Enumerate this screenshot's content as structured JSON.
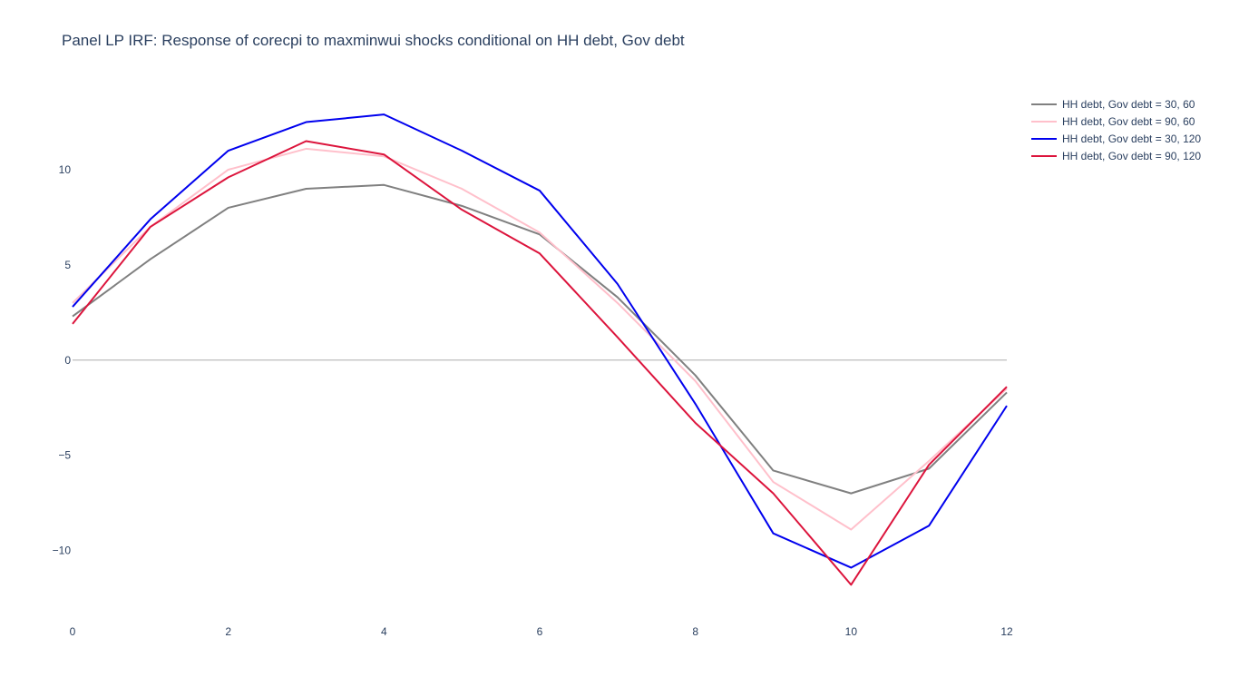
{
  "chart_data": {
    "type": "line",
    "title": "Panel LP IRF: Response of corecpi to maxminwui shocks conditional on HH debt, Gov debt",
    "xlabel": "",
    "ylabel": "",
    "x": [
      0,
      1,
      2,
      3,
      4,
      5,
      6,
      7,
      8,
      9,
      10,
      11,
      12
    ],
    "xlim": [
      0,
      12
    ],
    "ylim": [
      -13.5,
      15.1
    ],
    "x_ticks": [
      0,
      2,
      4,
      6,
      8,
      10,
      12
    ],
    "x_tick_labels": [
      "0",
      "2",
      "4",
      "6",
      "8",
      "10",
      "12"
    ],
    "y_ticks": [
      -10,
      -5,
      0,
      5,
      10
    ],
    "y_tick_labels": [
      "−10",
      "−5",
      "0",
      "5",
      "10"
    ],
    "zero_line": true,
    "grid": false,
    "legend_position": "top-right",
    "series": [
      {
        "name": "HH debt, Gov debt = 30, 60",
        "color": "#808080",
        "values": [
          2.3,
          5.3,
          8.0,
          9.0,
          9.2,
          8.1,
          6.6,
          3.3,
          -0.8,
          -5.8,
          -7.0,
          -5.7,
          -1.7
        ]
      },
      {
        "name": "HH debt, Gov debt = 90, 60",
        "color": "#ffc0cb",
        "values": [
          3.0,
          7.0,
          10.0,
          11.1,
          10.7,
          9.0,
          6.7,
          3.0,
          -1.1,
          -6.4,
          -8.9,
          -5.3,
          -1.5
        ]
      },
      {
        "name": "HH debt, Gov debt = 30, 120",
        "color": "#0000ee",
        "values": [
          2.8,
          7.4,
          11.0,
          12.5,
          12.9,
          11.0,
          8.9,
          4.0,
          -2.3,
          -9.1,
          -10.9,
          -8.7,
          -2.4
        ]
      },
      {
        "name": "HH debt, Gov debt = 90, 120",
        "color": "#dc143c",
        "values": [
          1.9,
          7.0,
          9.6,
          11.5,
          10.8,
          7.9,
          5.6,
          1.2,
          -3.3,
          -7.0,
          -11.8,
          -5.5,
          -1.4
        ]
      }
    ]
  }
}
